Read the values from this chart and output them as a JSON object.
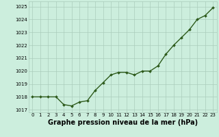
{
  "x": [
    0,
    1,
    2,
    3,
    4,
    5,
    6,
    7,
    8,
    9,
    10,
    11,
    12,
    13,
    14,
    15,
    16,
    17,
    18,
    19,
    20,
    21,
    22,
    23
  ],
  "y": [
    1018.0,
    1018.0,
    1018.0,
    1018.0,
    1017.4,
    1017.3,
    1017.6,
    1017.7,
    1018.5,
    1019.1,
    1019.7,
    1019.9,
    1019.9,
    1019.7,
    1020.0,
    1020.0,
    1020.4,
    1021.3,
    1022.0,
    1022.6,
    1023.2,
    1024.0,
    1024.3,
    1024.9
  ],
  "line_color": "#2d5a1b",
  "marker": "D",
  "marker_size": 2.0,
  "bg_color": "#cceedd",
  "grid_color": "#aaccbb",
  "xlabel": "Graphe pression niveau de la mer (hPa)",
  "ylabel": "",
  "ylim": [
    1016.8,
    1025.4
  ],
  "yticks": [
    1017,
    1018,
    1019,
    1020,
    1021,
    1022,
    1023,
    1024,
    1025
  ],
  "xlim": [
    -0.5,
    23.5
  ],
  "xticks": [
    0,
    1,
    2,
    3,
    4,
    5,
    6,
    7,
    8,
    9,
    10,
    11,
    12,
    13,
    14,
    15,
    16,
    17,
    18,
    19,
    20,
    21,
    22,
    23
  ],
  "tick_fontsize": 5.0,
  "xlabel_fontsize": 7.0,
  "line_width": 1.0
}
